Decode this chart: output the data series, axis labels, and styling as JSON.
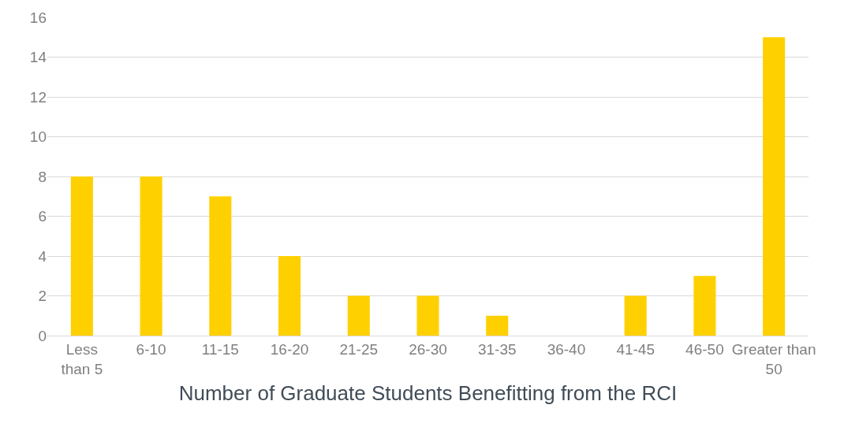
{
  "chart_data": {
    "type": "bar",
    "xlabel": "Number of Graduate Students Benefitting from the RCI",
    "categories": [
      "Less than 5",
      "6-10",
      "11-15",
      "16-20",
      "21-25",
      "26-30",
      "31-35",
      "36-40",
      "41-45",
      "46-50",
      "Greater than 50"
    ],
    "values": [
      8,
      8,
      7,
      4,
      2,
      2,
      1,
      0,
      2,
      3,
      15
    ],
    "color": "#ffd000",
    "ylim": [
      0,
      16
    ],
    "yticks": [
      0,
      2,
      4,
      6,
      8,
      10,
      12,
      14,
      16
    ],
    "grid": "y",
    "legend": false
  }
}
